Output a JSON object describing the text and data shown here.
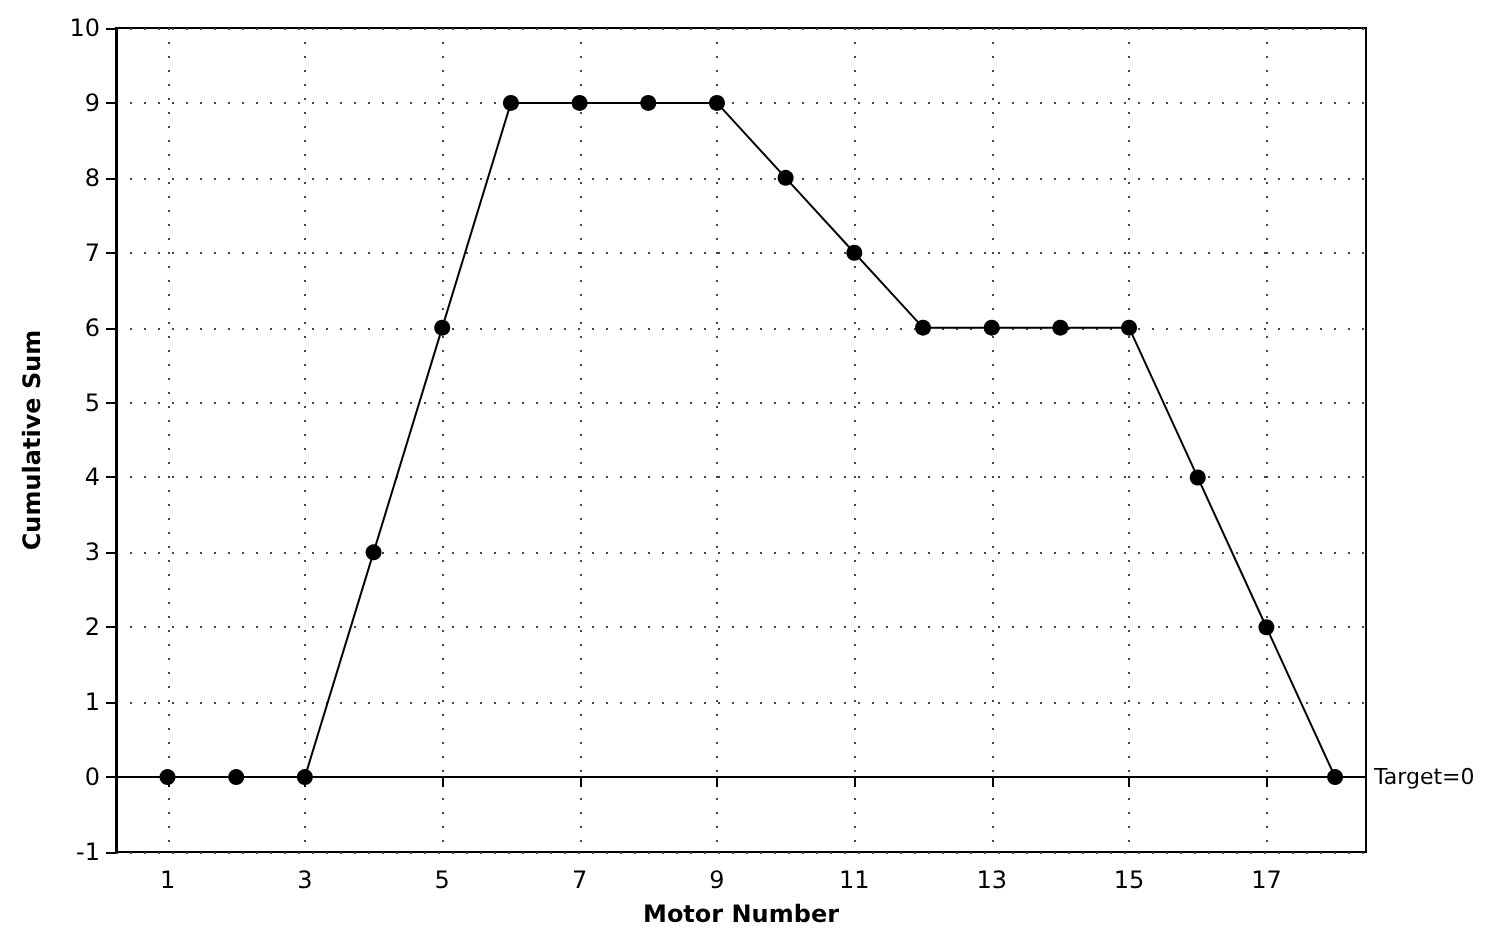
{
  "chart_data": {
    "type": "line",
    "xlabel": "Motor Number",
    "ylabel": "Cumulative Sum",
    "x": [
      1,
      2,
      3,
      4,
      5,
      6,
      7,
      8,
      9,
      10,
      11,
      12,
      13,
      14,
      15,
      16,
      17,
      18
    ],
    "series": [
      {
        "color": "#000000",
        "values": [
          0,
          0,
          0,
          3,
          6,
          9,
          9,
          9,
          9,
          8,
          7,
          6,
          6,
          6,
          6,
          4,
          2,
          0
        ]
      }
    ],
    "xlim": [
      0.25,
      18.45
    ],
    "xticks": [
      1,
      3,
      5,
      7,
      9,
      11,
      13,
      15,
      17
    ],
    "ylim": [
      -1,
      10
    ],
    "yticks": [
      -1,
      0,
      1,
      2,
      3,
      4,
      5,
      6,
      7,
      8,
      9,
      10
    ],
    "ref_lines": [
      {
        "axis": "y",
        "value": 0,
        "label": "Target=0",
        "color": "#000000"
      }
    ],
    "grid": true,
    "marker": "circle",
    "line_style": "solid"
  }
}
